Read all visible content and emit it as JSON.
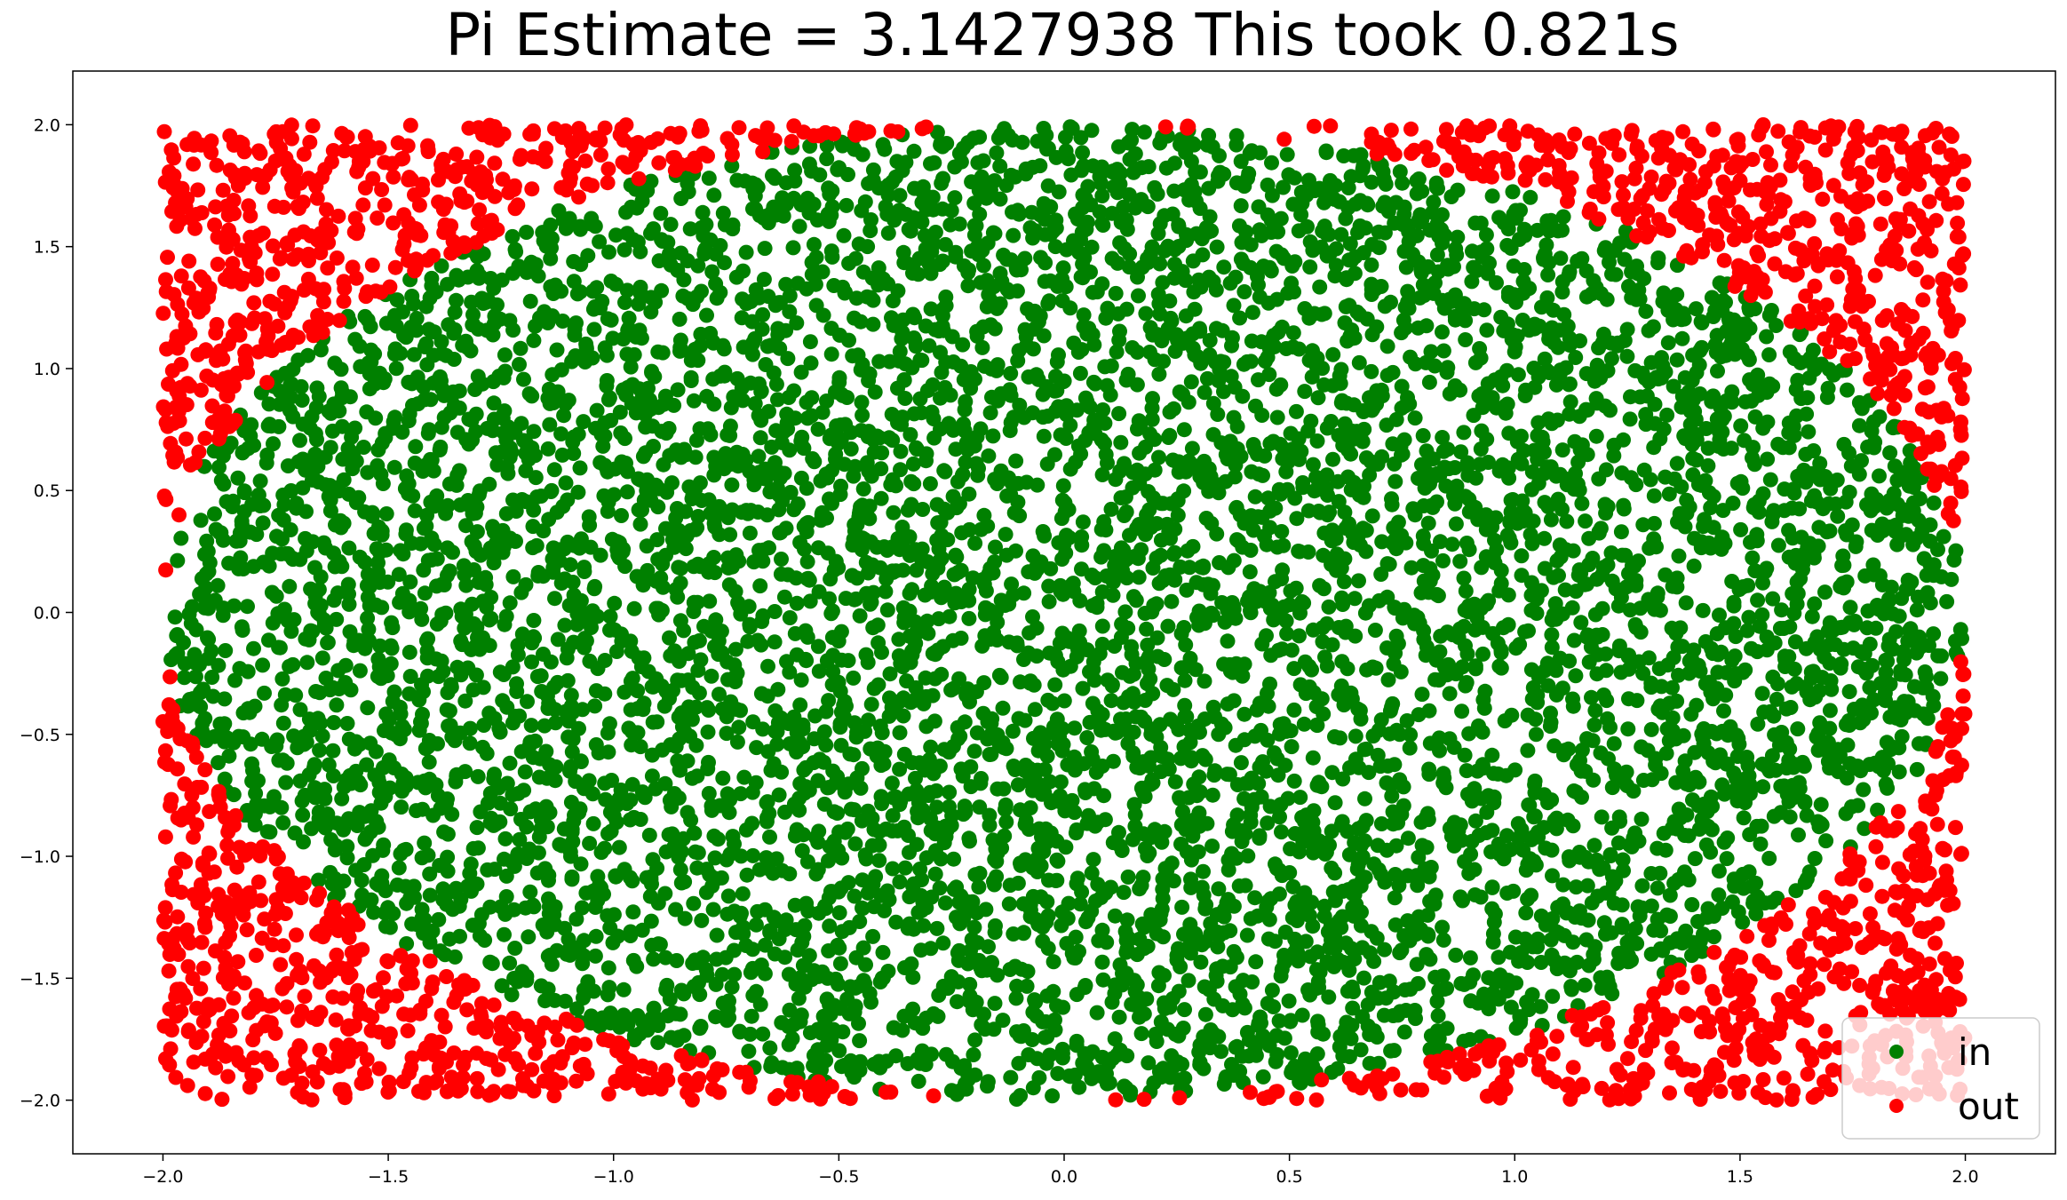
{
  "chart_data": {
    "type": "scatter",
    "title": "Pi Estimate = 3.1427938 This took 0.821s",
    "xlabel": "",
    "ylabel": "",
    "xlim": [
      -2.2,
      2.2
    ],
    "ylim": [
      -2.22,
      2.22
    ],
    "xticks": [
      -2.0,
      -1.5,
      -1.0,
      -0.5,
      0.0,
      0.5,
      1.0,
      1.5,
      2.0
    ],
    "xtick_labels": [
      "−2.0",
      "−1.5",
      "−1.0",
      "−0.5",
      "0.0",
      "0.5",
      "1.0",
      "1.5",
      "2.0"
    ],
    "yticks": [
      2.0,
      1.5,
      1.0,
      0.5,
      0.0,
      -0.5,
      -1.0,
      -1.5,
      -2.0
    ],
    "ytick_labels": [
      "2.0",
      "1.5",
      "1.0",
      "0.5",
      "0.0",
      "−0.5",
      "−1.0",
      "−1.5",
      "−2.0"
    ],
    "grid": false,
    "legend_position": "lower right",
    "series": [
      {
        "name": "in",
        "color": "#008000",
        "rule": "x^2 + y^2 <= 4",
        "domain": [
          [
            -2,
            2
          ],
          [
            -2,
            2
          ]
        ]
      },
      {
        "name": "out",
        "color": "#ff0000",
        "rule": "x^2 + y^2 > 4",
        "domain": [
          [
            -2,
            2
          ],
          [
            -2,
            2
          ]
        ]
      }
    ]
  }
}
